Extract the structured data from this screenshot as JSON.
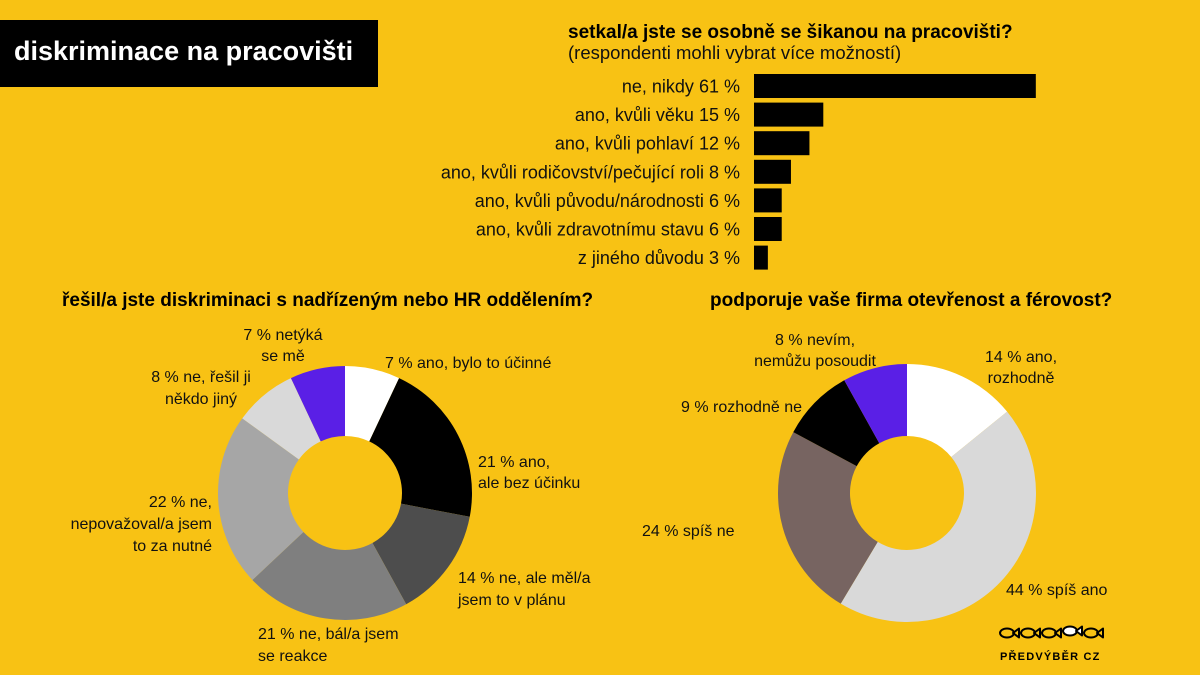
{
  "page": {
    "title": "diskriminace na pracovišti"
  },
  "colors": {
    "background": "#F8C214",
    "title_box": "#000000",
    "title_text": "#FFFFFF",
    "text": "#111111"
  },
  "chart_data": [
    {
      "type": "bar",
      "orientation": "horizontal",
      "title": "setkal/a jste se osobně se šikanou na pracovišti?",
      "subtitle": "(respondenti mohli vybrat více možností)",
      "categories": [
        "ne, nikdy",
        "ano, kvůli věku",
        "ano, kvůli pohlaví",
        "ano, kvůli rodičovství/pečující roli",
        "ano, kvůli původu/národnosti",
        "ano, kvůli zdravotnímu stavu",
        "z jiného důvodu"
      ],
      "values": [
        61,
        15,
        12,
        8,
        6,
        6,
        3
      ],
      "value_suffix": "%",
      "color": "#000000",
      "grid": false,
      "legend": "none"
    },
    {
      "type": "pie",
      "variant": "donut",
      "title": "řešil/a jste diskriminaci s nadřízeným nebo HR oddělením?",
      "legend": "none",
      "slices": [
        {
          "value": 7,
          "lines": [
            "7 % ano, bylo to účinné"
          ],
          "color": "#FFFFFF"
        },
        {
          "value": 21,
          "lines": [
            "21 % ano,",
            "ale bez účinku"
          ],
          "color": "#000000"
        },
        {
          "value": 14,
          "lines": [
            "14 % ne, ale měl/a",
            "jsem to v plánu"
          ],
          "color": "#4D4D4D"
        },
        {
          "value": 21,
          "lines": [
            "21 % ne, bál/a jsem",
            "se reakce"
          ],
          "color": "#7F7F7F"
        },
        {
          "value": 22,
          "lines": [
            "22 % ne,",
            "nepovažoval/a jsem",
            "to za nutné"
          ],
          "color": "#A6A6A6"
        },
        {
          "value": 8,
          "lines": [
            "8 % ne, řešil ji",
            "někdo jiný"
          ],
          "color": "#D9D9D9"
        },
        {
          "value": 7,
          "lines": [
            "7 % netýká",
            "se mě"
          ],
          "color": "#5A1FE6"
        }
      ]
    },
    {
      "type": "pie",
      "variant": "donut",
      "title": "podporuje vaše firma otevřenost a férovost?",
      "legend": "none",
      "slices": [
        {
          "value": 14,
          "lines": [
            "14 % ano,",
            "rozhodně"
          ],
          "color": "#FFFFFF"
        },
        {
          "value": 44,
          "lines": [
            "44 % spíš ano"
          ],
          "color": "#D9D9D9"
        },
        {
          "value": 24,
          "lines": [
            "24 % spíš ne"
          ],
          "color": "#776461"
        },
        {
          "value": 9,
          "lines": [
            "9 % rozhodně ne"
          ],
          "color": "#000000"
        },
        {
          "value": 8,
          "lines": [
            "8 % nevím,",
            "nemůžu posoudit"
          ],
          "color": "#5A1FE6"
        }
      ]
    }
  ],
  "logo": {
    "text": "PŘEDVÝBĚR CZ",
    "icon": "fish-icons"
  }
}
